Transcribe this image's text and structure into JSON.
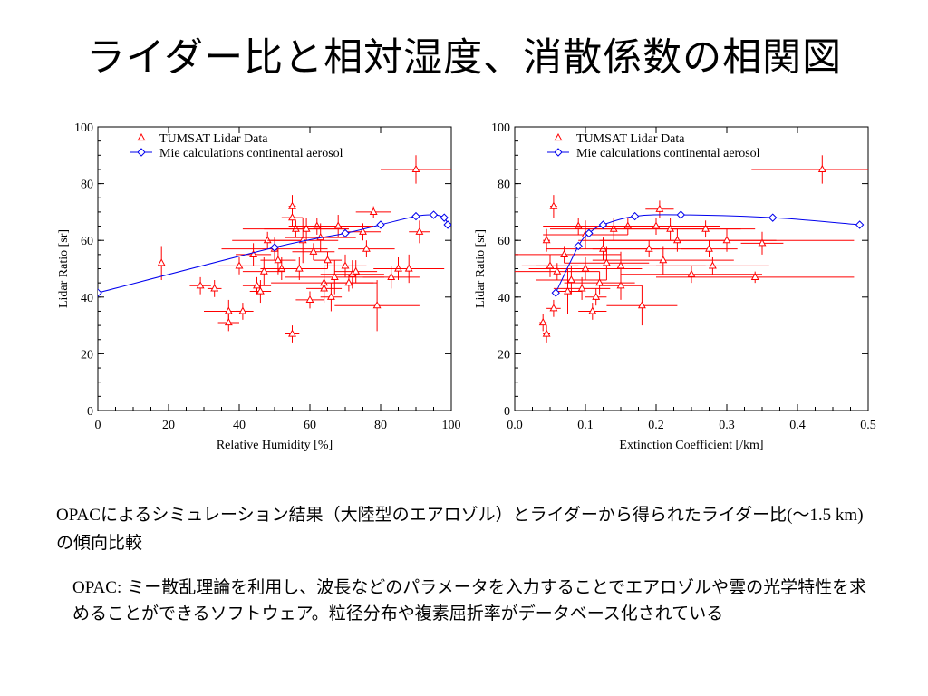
{
  "slide": {
    "title": "ライダー比と相対湿度、消散係数の相関図",
    "caption_prefix": "OPAC",
    "caption_text": "によるシミュレーション結果（大陸型のエアロゾル）とライダーから得られたライダー比",
    "caption_paren": "(〜1.5 km)",
    "caption_suffix": "の傾向比較",
    "note_prefix": "OPAC:",
    "note_text": " ミー散乱理論を利用し、波長などのパラメータを入力することでエアロゾルや雲の光学特性を求めることができるソフトウェア。粒径分布や複素屈折率がデータベース化されている"
  },
  "colors": {
    "lidar": "#ff0000",
    "mie": "#0000ee"
  },
  "chart_data": [
    {
      "type": "scatter",
      "xlabel": "Relative Humidity [%]",
      "ylabel": "Lidar Ratio [sr]",
      "xlim": [
        0,
        100
      ],
      "ylim": [
        0,
        100
      ],
      "xticks": [
        0,
        20,
        40,
        60,
        80,
        100
      ],
      "xtick_labels": [
        "0",
        "20",
        "40",
        "60",
        "80",
        "100"
      ],
      "yticks": [
        0,
        20,
        40,
        60,
        80,
        100
      ],
      "ytick_labels": [
        "0",
        "20",
        "40",
        "60",
        "80",
        "100"
      ],
      "legend_position": "top-left",
      "series": [
        {
          "name": "TUMSAT Lidar Data",
          "marker": "triangle",
          "points": [
            {
              "x": 18,
              "y": 52,
              "xerr": 0,
              "yerr": 6
            },
            {
              "x": 29,
              "y": 44,
              "xerr": 3,
              "yerr": 3
            },
            {
              "x": 33,
              "y": 43,
              "xerr": 2,
              "yerr": 3
            },
            {
              "x": 37,
              "y": 35,
              "xerr": 7,
              "yerr": 4
            },
            {
              "x": 37,
              "y": 31,
              "xerr": 3,
              "yerr": 3
            },
            {
              "x": 40,
              "y": 51,
              "xerr": 6,
              "yerr": 3
            },
            {
              "x": 41,
              "y": 35,
              "xerr": 2,
              "yerr": 3
            },
            {
              "x": 44,
              "y": 55,
              "xerr": 5,
              "yerr": 4
            },
            {
              "x": 45,
              "y": 44,
              "xerr": 4,
              "yerr": 3
            },
            {
              "x": 46,
              "y": 42,
              "xerr": 3,
              "yerr": 4
            },
            {
              "x": 47,
              "y": 49,
              "xerr": 6,
              "yerr": 5
            },
            {
              "x": 48,
              "y": 60,
              "xerr": 10,
              "yerr": 3
            },
            {
              "x": 50,
              "y": 57,
              "xerr": 15,
              "yerr": 4
            },
            {
              "x": 51,
              "y": 53,
              "xerr": 5,
              "yerr": 5
            },
            {
              "x": 52,
              "y": 50,
              "xerr": 6,
              "yerr": 4
            },
            {
              "x": 55,
              "y": 72,
              "xerr": 1,
              "yerr": 4
            },
            {
              "x": 55,
              "y": 68,
              "xerr": 3,
              "yerr": 3
            },
            {
              "x": 56,
              "y": 64,
              "xerr": 15,
              "yerr": 3
            },
            {
              "x": 55,
              "y": 27,
              "xerr": 2,
              "yerr": 3
            },
            {
              "x": 57,
              "y": 50,
              "xerr": 8,
              "yerr": 4
            },
            {
              "x": 58,
              "y": 60,
              "xerr": 10,
              "yerr": 8
            },
            {
              "x": 59,
              "y": 64,
              "xerr": 12,
              "yerr": 4
            },
            {
              "x": 60,
              "y": 39,
              "xerr": 4,
              "yerr": 3
            },
            {
              "x": 61,
              "y": 56,
              "xerr": 6,
              "yerr": 3
            },
            {
              "x": 62,
              "y": 65,
              "xerr": 8,
              "yerr": 3
            },
            {
              "x": 63,
              "y": 61,
              "xerr": 10,
              "yerr": 5
            },
            {
              "x": 64,
              "y": 43,
              "xerr": 5,
              "yerr": 5
            },
            {
              "x": 64,
              "y": 45,
              "xerr": 15,
              "yerr": 6
            },
            {
              "x": 65,
              "y": 53,
              "xerr": 4,
              "yerr": 3
            },
            {
              "x": 66,
              "y": 40,
              "xerr": 3,
              "yerr": 5
            },
            {
              "x": 67,
              "y": 47,
              "xerr": 14,
              "yerr": 6
            },
            {
              "x": 68,
              "y": 65,
              "xerr": 10,
              "yerr": 4
            },
            {
              "x": 70,
              "y": 51,
              "xerr": 6,
              "yerr": 4
            },
            {
              "x": 71,
              "y": 45,
              "xerr": 7,
              "yerr": 3
            },
            {
              "x": 72,
              "y": 48,
              "xerr": 9,
              "yerr": 5
            },
            {
              "x": 73,
              "y": 49,
              "xerr": 6,
              "yerr": 4
            },
            {
              "x": 75,
              "y": 63,
              "xerr": 5,
              "yerr": 3
            },
            {
              "x": 76,
              "y": 57,
              "xerr": 8,
              "yerr": 3
            },
            {
              "x": 78,
              "y": 70,
              "xerr": 5,
              "yerr": 2
            },
            {
              "x": 79,
              "y": 37,
              "xerr": 12,
              "yerr": 9
            },
            {
              "x": 83,
              "y": 47,
              "xerr": 8,
              "yerr": 4
            },
            {
              "x": 85,
              "y": 50,
              "xerr": 6,
              "yerr": 4
            },
            {
              "x": 88,
              "y": 50,
              "xerr": 10,
              "yerr": 5
            },
            {
              "x": 90,
              "y": 85,
              "xerr": 10,
              "yerr": 5
            },
            {
              "x": 91,
              "y": 63,
              "xerr": 3,
              "yerr": 4
            }
          ]
        },
        {
          "name": "Mie calculations continental aerosol",
          "marker": "diamond",
          "points": [
            {
              "x": 0,
              "y": 41.5
            },
            {
              "x": 50,
              "y": 57.5
            },
            {
              "x": 70,
              "y": 62.5
            },
            {
              "x": 80,
              "y": 65.5
            },
            {
              "x": 90,
              "y": 68.5
            },
            {
              "x": 95,
              "y": 69
            },
            {
              "x": 98,
              "y": 68
            },
            {
              "x": 99,
              "y": 65.5
            }
          ]
        }
      ]
    },
    {
      "type": "scatter",
      "xlabel": "Extinction Coefficient [/km]",
      "ylabel": "Lidar Ratio [sr]",
      "xlim": [
        0,
        0.5
      ],
      "ylim": [
        0,
        100
      ],
      "xticks": [
        0,
        0.1,
        0.2,
        0.3,
        0.4,
        0.5
      ],
      "xtick_labels": [
        "0.0",
        "0.1",
        "0.2",
        "0.3",
        "0.4",
        "0.5"
      ],
      "yticks": [
        0,
        20,
        40,
        60,
        80,
        100
      ],
      "ytick_labels": [
        "0",
        "20",
        "40",
        "60",
        "80",
        "100"
      ],
      "legend_position": "top-left",
      "series": [
        {
          "name": "TUMSAT Lidar Data",
          "marker": "triangle",
          "points": [
            {
              "x": 0.04,
              "y": 31,
              "xerr": 0.005,
              "yerr": 3
            },
            {
              "x": 0.045,
              "y": 27,
              "xerr": 0.005,
              "yerr": 3
            },
            {
              "x": 0.045,
              "y": 60,
              "xerr": 0.005,
              "yerr": 4
            },
            {
              "x": 0.05,
              "y": 51,
              "xerr": 0.04,
              "yerr": 4
            },
            {
              "x": 0.055,
              "y": 72,
              "xerr": 0.005,
              "yerr": 4
            },
            {
              "x": 0.055,
              "y": 36,
              "xerr": 0.01,
              "yerr": 3
            },
            {
              "x": 0.06,
              "y": 49,
              "xerr": 0.06,
              "yerr": 3
            },
            {
              "x": 0.07,
              "y": 55,
              "xerr": 0.08,
              "yerr": 3
            },
            {
              "x": 0.075,
              "y": 42,
              "xerr": 0.02,
              "yerr": 8
            },
            {
              "x": 0.08,
              "y": 46,
              "xerr": 0.05,
              "yerr": 5
            },
            {
              "x": 0.09,
              "y": 65,
              "xerr": 0.05,
              "yerr": 3
            },
            {
              "x": 0.095,
              "y": 43,
              "xerr": 0.04,
              "yerr": 4
            },
            {
              "x": 0.1,
              "y": 62,
              "xerr": 0.06,
              "yerr": 5
            },
            {
              "x": 0.1,
              "y": 50,
              "xerr": 0.08,
              "yerr": 4
            },
            {
              "x": 0.11,
              "y": 35,
              "xerr": 0.02,
              "yerr": 3
            },
            {
              "x": 0.115,
              "y": 40,
              "xerr": 0.015,
              "yerr": 3
            },
            {
              "x": 0.12,
              "y": 45,
              "xerr": 0.05,
              "yerr": 4
            },
            {
              "x": 0.125,
              "y": 57,
              "xerr": 0.08,
              "yerr": 4
            },
            {
              "x": 0.13,
              "y": 52,
              "xerr": 0.06,
              "yerr": 6
            },
            {
              "x": 0.14,
              "y": 64,
              "xerr": 0.09,
              "yerr": 4
            },
            {
              "x": 0.15,
              "y": 44,
              "xerr": 0.03,
              "yerr": 5
            },
            {
              "x": 0.15,
              "y": 51,
              "xerr": 0.12,
              "yerr": 5
            },
            {
              "x": 0.16,
              "y": 65,
              "xerr": 0.1,
              "yerr": 3
            },
            {
              "x": 0.18,
              "y": 37,
              "xerr": 0.05,
              "yerr": 7
            },
            {
              "x": 0.19,
              "y": 57,
              "xerr": 0.08,
              "yerr": 3
            },
            {
              "x": 0.2,
              "y": 65,
              "xerr": 0.09,
              "yerr": 3
            },
            {
              "x": 0.205,
              "y": 71,
              "xerr": 0.02,
              "yerr": 3
            },
            {
              "x": 0.21,
              "y": 53,
              "xerr": 0.1,
              "yerr": 5
            },
            {
              "x": 0.22,
              "y": 64,
              "xerr": 0.12,
              "yerr": 4
            },
            {
              "x": 0.23,
              "y": 60,
              "xerr": 0.14,
              "yerr": 4
            },
            {
              "x": 0.25,
              "y": 48,
              "xerr": 0.1,
              "yerr": 3
            },
            {
              "x": 0.27,
              "y": 64,
              "xerr": 0.05,
              "yerr": 3
            },
            {
              "x": 0.275,
              "y": 57,
              "xerr": 0.04,
              "yerr": 3
            },
            {
              "x": 0.28,
              "y": 51,
              "xerr": 0.08,
              "yerr": 3
            },
            {
              "x": 0.3,
              "y": 60,
              "xerr": 0.18,
              "yerr": 4
            },
            {
              "x": 0.34,
              "y": 47,
              "xerr": 0.14,
              "yerr": 2
            },
            {
              "x": 0.35,
              "y": 59,
              "xerr": 0.03,
              "yerr": 4
            },
            {
              "x": 0.435,
              "y": 85,
              "xerr": 0.1,
              "yerr": 5
            }
          ]
        },
        {
          "name": "Mie calculations continental aerosol",
          "marker": "diamond",
          "points": [
            {
              "x": 0.058,
              "y": 41.5
            },
            {
              "x": 0.09,
              "y": 58
            },
            {
              "x": 0.105,
              "y": 62.5
            },
            {
              "x": 0.125,
              "y": 65.5
            },
            {
              "x": 0.17,
              "y": 68.5
            },
            {
              "x": 0.235,
              "y": 69
            },
            {
              "x": 0.365,
              "y": 68
            },
            {
              "x": 0.488,
              "y": 65.5
            }
          ]
        }
      ]
    }
  ]
}
